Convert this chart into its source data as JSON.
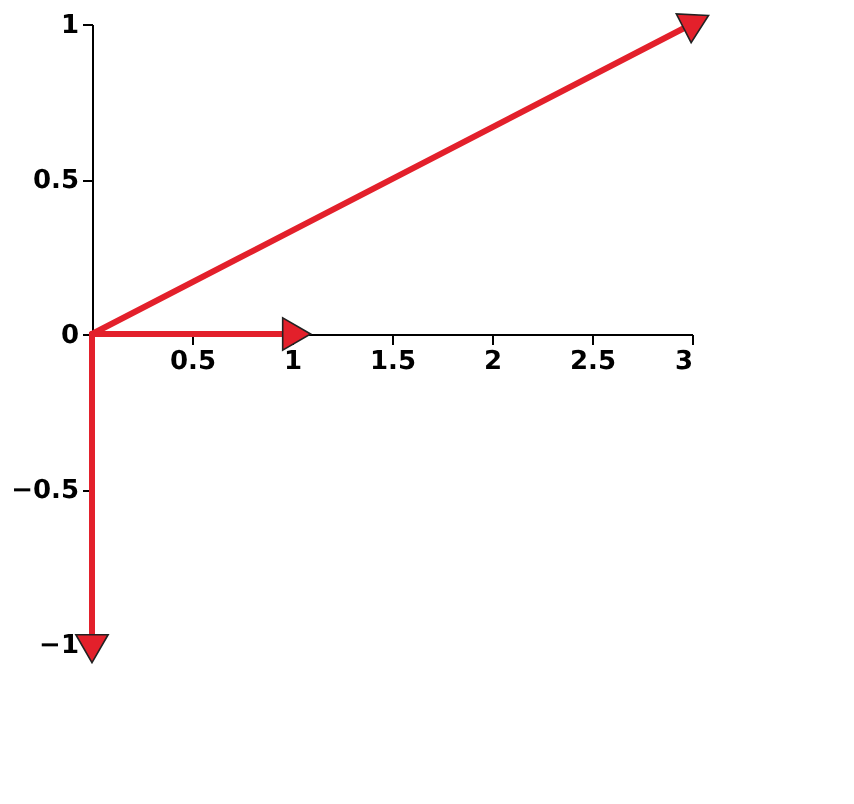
{
  "chart_data": {
    "type": "line",
    "series": [
      {
        "x": [
          0,
          3
        ],
        "values": [
          0,
          1
        ],
        "color": "#e3202b"
      },
      {
        "x": [
          0,
          1
        ],
        "values": [
          0,
          0
        ],
        "color": "#e3202b"
      },
      {
        "x": [
          0,
          0
        ],
        "values": [
          0,
          -1
        ],
        "color": "#e3202b"
      }
    ],
    "xlim": [
      0,
      3
    ],
    "xticks": [
      0.5,
      1,
      1.5,
      2,
      2.5,
      3
    ],
    "ylim": [
      -1,
      1
    ],
    "yticks": [
      -1,
      -0.5,
      0,
      0.5,
      1
    ],
    "grid": false
  }
}
